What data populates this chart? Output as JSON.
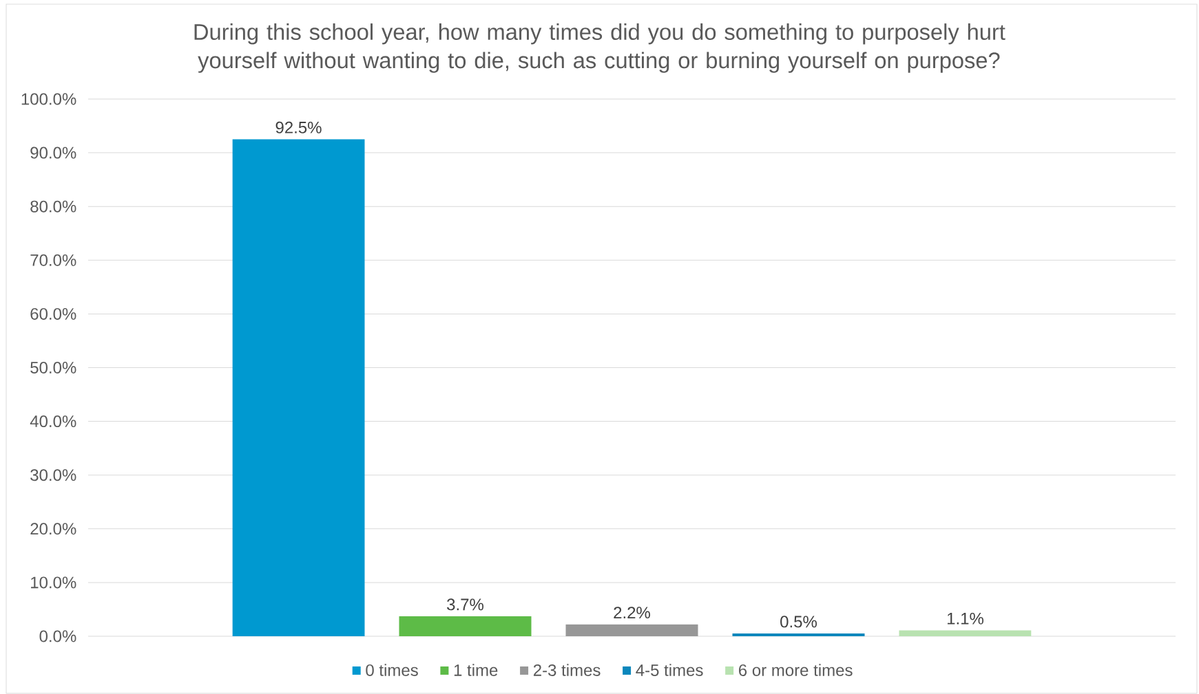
{
  "chart_data": {
    "type": "bar",
    "title": "During this school year, how many times did you do something to purposely hurt yourself without wanting to die, such as cutting or burning yourself on purpose?",
    "categories": [
      null
    ],
    "series": [
      {
        "name": "0 times",
        "color": "#0099d0",
        "values": [
          92.5
        ],
        "value_labels": [
          "92.5%"
        ]
      },
      {
        "name": "1 time",
        "color": "#5dbb47",
        "values": [
          3.7
        ],
        "value_labels": [
          "3.7%"
        ]
      },
      {
        "name": "2-3 times",
        "color": "#979797",
        "values": [
          2.2
        ],
        "value_labels": [
          "2.2%"
        ]
      },
      {
        "name": "4-5 times",
        "color": "#0b87bc",
        "values": [
          0.5
        ],
        "value_labels": [
          "0.5%"
        ]
      },
      {
        "name": "6 or more times",
        "color": "#b8e2b0",
        "values": [
          1.1
        ],
        "value_labels": [
          "1.1%"
        ]
      }
    ],
    "ylim": [
      0,
      100
    ],
    "yticks": [
      {
        "value": 0,
        "label": "0.0%"
      },
      {
        "value": 10,
        "label": "10.0%"
      },
      {
        "value": 20,
        "label": "20.0%"
      },
      {
        "value": 30,
        "label": "30.0%"
      },
      {
        "value": 40,
        "label": "40.0%"
      },
      {
        "value": 50,
        "label": "50.0%"
      },
      {
        "value": 60,
        "label": "60.0%"
      },
      {
        "value": 70,
        "label": "70.0%"
      },
      {
        "value": 80,
        "label": "80.0%"
      },
      {
        "value": 90,
        "label": "90.0%"
      },
      {
        "value": 100,
        "label": "100.0%"
      }
    ],
    "grid": "y",
    "legend": "bottom"
  }
}
